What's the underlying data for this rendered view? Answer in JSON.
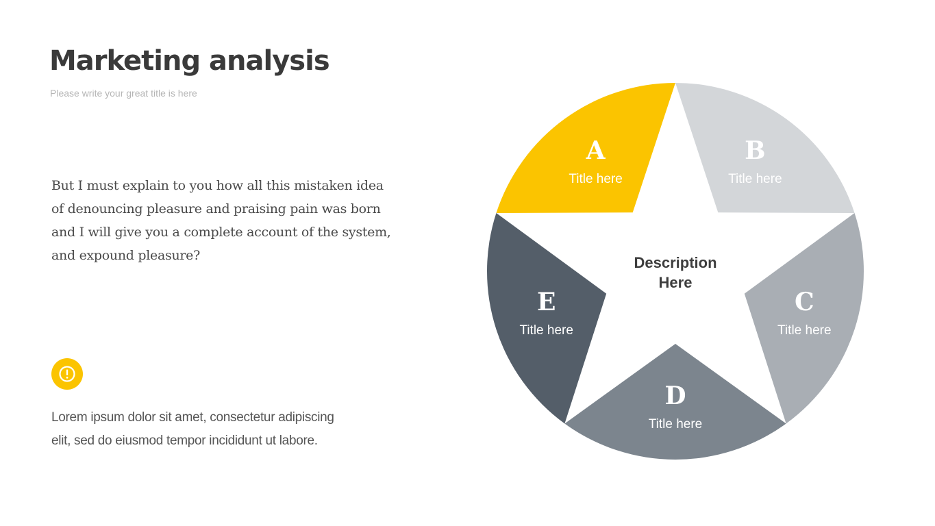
{
  "header": {
    "title": "Marketing analysis",
    "subtitle": "Please write your great title is here"
  },
  "body": {
    "paragraph": "But I must explain to you how all this mistaken idea of denouncing pleasure and praising pain was born and I will give you a complete account of the system, and expound pleasure?"
  },
  "note": {
    "icon": "exclamation-icon",
    "text": "Lorem ipsum dolor sit amet, consectetur adipiscing elit, sed do eiusmod tempor incididunt ut labore."
  },
  "diagram": {
    "center_line1": "Description",
    "center_line2": "Here",
    "segments": [
      {
        "letter": "A",
        "label": "Title here",
        "color": "#fbc400"
      },
      {
        "letter": "B",
        "label": "Title here",
        "color": "#d3d6d9"
      },
      {
        "letter": "C",
        "label": "Title here",
        "color": "#a9aeb4"
      },
      {
        "letter": "D",
        "label": "Title here",
        "color": "#7c858e"
      },
      {
        "letter": "E",
        "label": "Title here",
        "color": "#545e69"
      }
    ]
  },
  "colors": {
    "accent": "#fbc400",
    "title": "#3a3a3a"
  }
}
